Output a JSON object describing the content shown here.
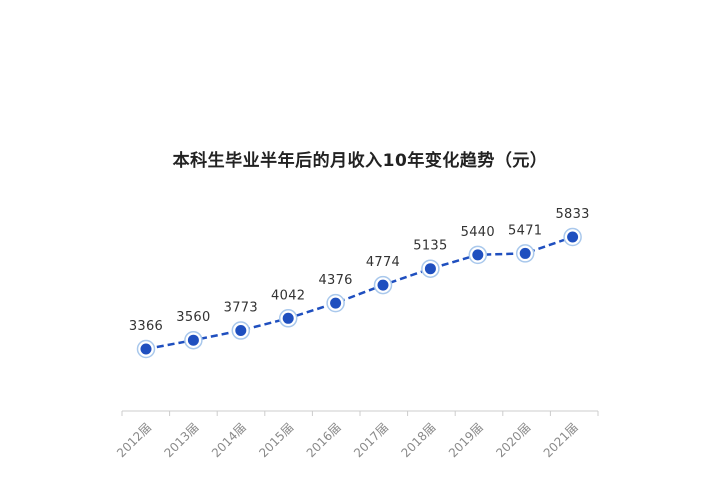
{
  "chart_data": {
    "type": "line",
    "title": "本科生毕业半年后的月收入10年变化趋势（元）",
    "categories": [
      "2012届",
      "2013届",
      "2014届",
      "2015届",
      "2016届",
      "2017届",
      "2018届",
      "2019届",
      "2020届",
      "2021届"
    ],
    "series": [
      {
        "values": [
          3366,
          3560,
          3773,
          4042,
          4376,
          4774,
          5135,
          5440,
          5471,
          5833
        ]
      }
    ],
    "line_style": "dashed",
    "show_data_labels": true,
    "grid": false,
    "colors": {
      "line": "#1f4fbf",
      "marker": "#1f4fbf",
      "marker_ring": "#a9c8ec",
      "axis": "#cccccc"
    }
  }
}
